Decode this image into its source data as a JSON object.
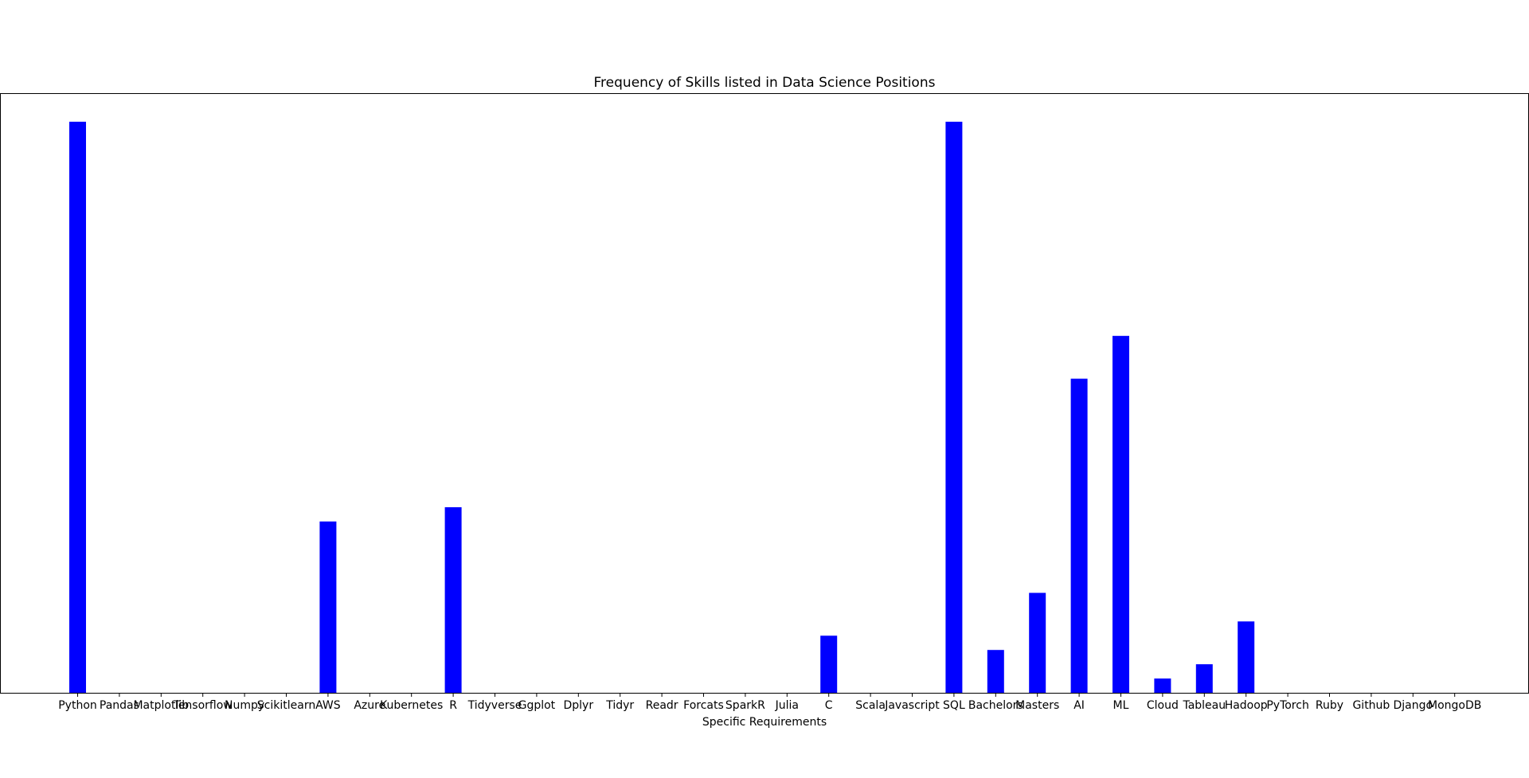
{
  "chart_data": {
    "type": "bar",
    "title": "Frequency of Skills listed in Data Science Positions",
    "xlabel": "Specific Requirements",
    "ylabel": "",
    "ylim": [
      0,
      42
    ],
    "yticks_visible": false,
    "grid": false,
    "legend": "none",
    "bar_color": "#0000ff",
    "categories": [
      "Python",
      "Pandas",
      "Matplotlib",
      "Tensorflow",
      "Numpy",
      "Scikitlearn",
      "AWS",
      "Azure",
      "Kubernetes",
      "R",
      "Tidyverse",
      "Ggplot",
      "Dplyr",
      "Tidyr",
      "Readr",
      "Forcats",
      "SparkR",
      "Julia",
      "C",
      "Scala",
      "Javascript",
      "SQL",
      "Bachelors",
      "Masters",
      "AI",
      "ML",
      "Cloud",
      "Tableau",
      "Hadoop",
      "PyTorch",
      "Ruby",
      "Github",
      "Django",
      "MongoDB"
    ],
    "values": [
      40,
      0,
      0,
      0,
      0,
      0,
      12,
      0,
      0,
      13,
      0,
      0,
      0,
      0,
      0,
      0,
      0,
      0,
      4,
      0,
      0,
      40,
      3,
      7,
      22,
      25,
      1,
      2,
      5,
      0,
      0,
      0,
      0,
      0
    ]
  }
}
